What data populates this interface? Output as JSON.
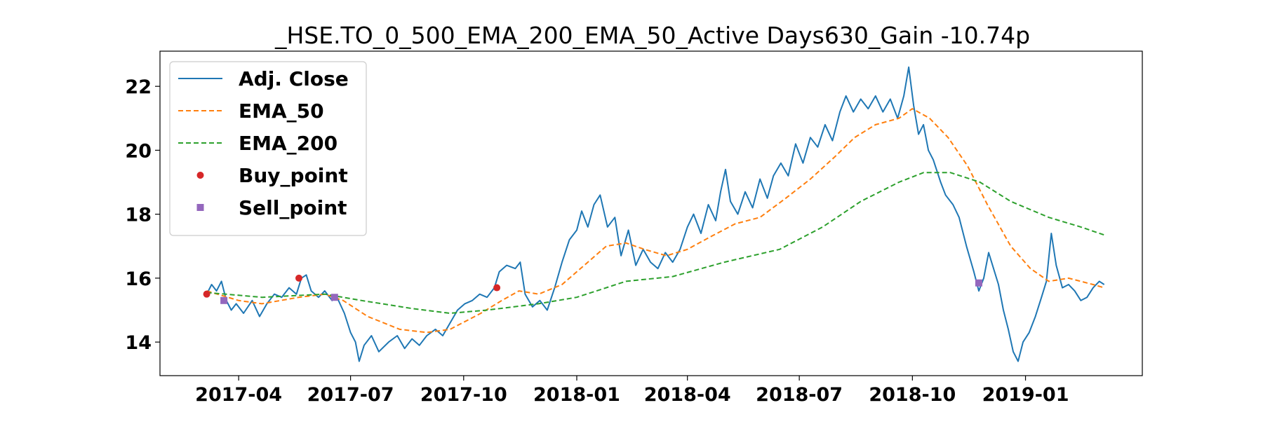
{
  "chart_data": {
    "type": "line",
    "title": "_HSE.TO_0_500_EMA_200_EMA_50_Active Days630_Gain -10.74p",
    "xlabel": "",
    "ylabel": "",
    "x_range": [
      "2017-01-27",
      "2019-04-06"
    ],
    "ylim": [
      12.95,
      23.1
    ],
    "x_ticks": [
      {
        "date": "2017-04-01",
        "label": "2017-04"
      },
      {
        "date": "2017-07-01",
        "label": "2017-07"
      },
      {
        "date": "2017-10-01",
        "label": "2017-10"
      },
      {
        "date": "2018-01-01",
        "label": "2018-01"
      },
      {
        "date": "2018-04-01",
        "label": "2018-04"
      },
      {
        "date": "2018-07-01",
        "label": "2018-07"
      },
      {
        "date": "2018-10-01",
        "label": "2018-10"
      },
      {
        "date": "2019-01-01",
        "label": "2019-01"
      }
    ],
    "y_ticks": [
      14,
      16,
      18,
      20,
      22
    ],
    "grid": false,
    "legend": {
      "placement": "upper-left",
      "entries": [
        {
          "label": "Adj. Close",
          "style": "line-solid",
          "color": "#1f77b4"
        },
        {
          "label": "EMA_50",
          "style": "line-dashed",
          "color": "#ff7f0e"
        },
        {
          "label": "EMA_200",
          "style": "line-dashed",
          "color": "#2ca02c"
        },
        {
          "label": "Buy_point",
          "style": "marker-circle",
          "color": "#d62728"
        },
        {
          "label": "Sell_point",
          "style": "marker-square",
          "color": "#9467bd"
        }
      ]
    },
    "series": [
      {
        "name": "Adj. Close",
        "color": "#1f77b4",
        "style": "solid",
        "points": [
          [
            "2017-03-06",
            15.5
          ],
          [
            "2017-03-10",
            15.8
          ],
          [
            "2017-03-14",
            15.6
          ],
          [
            "2017-03-18",
            15.9
          ],
          [
            "2017-03-22",
            15.3
          ],
          [
            "2017-03-26",
            15.0
          ],
          [
            "2017-03-30",
            15.2
          ],
          [
            "2017-04-05",
            14.9
          ],
          [
            "2017-04-12",
            15.3
          ],
          [
            "2017-04-18",
            14.8
          ],
          [
            "2017-04-24",
            15.2
          ],
          [
            "2017-04-30",
            15.5
          ],
          [
            "2017-05-06",
            15.4
          ],
          [
            "2017-05-12",
            15.7
          ],
          [
            "2017-05-18",
            15.5
          ],
          [
            "2017-05-22",
            16.0
          ],
          [
            "2017-05-26",
            16.1
          ],
          [
            "2017-05-30",
            15.6
          ],
          [
            "2017-06-05",
            15.4
          ],
          [
            "2017-06-10",
            15.6
          ],
          [
            "2017-06-16",
            15.3
          ],
          [
            "2017-06-20",
            15.4
          ],
          [
            "2017-06-26",
            14.9
          ],
          [
            "2017-07-01",
            14.3
          ],
          [
            "2017-07-05",
            14.0
          ],
          [
            "2017-07-08",
            13.4
          ],
          [
            "2017-07-12",
            13.9
          ],
          [
            "2017-07-18",
            14.2
          ],
          [
            "2017-07-24",
            13.7
          ],
          [
            "2017-08-01",
            14.0
          ],
          [
            "2017-08-08",
            14.2
          ],
          [
            "2017-08-14",
            13.8
          ],
          [
            "2017-08-20",
            14.1
          ],
          [
            "2017-08-26",
            13.9
          ],
          [
            "2017-09-01",
            14.2
          ],
          [
            "2017-09-08",
            14.4
          ],
          [
            "2017-09-14",
            14.2
          ],
          [
            "2017-09-20",
            14.6
          ],
          [
            "2017-09-26",
            15.0
          ],
          [
            "2017-10-02",
            15.2
          ],
          [
            "2017-10-08",
            15.3
          ],
          [
            "2017-10-14",
            15.5
          ],
          [
            "2017-10-20",
            15.4
          ],
          [
            "2017-10-26",
            15.7
          ],
          [
            "2017-10-30",
            16.2
          ],
          [
            "2017-11-05",
            16.4
          ],
          [
            "2017-11-12",
            16.3
          ],
          [
            "2017-11-16",
            16.5
          ],
          [
            "2017-11-20",
            15.5
          ],
          [
            "2017-11-26",
            15.1
          ],
          [
            "2017-12-02",
            15.3
          ],
          [
            "2017-12-08",
            15.0
          ],
          [
            "2017-12-14",
            15.7
          ],
          [
            "2017-12-20",
            16.5
          ],
          [
            "2017-12-26",
            17.2
          ],
          [
            "2018-01-01",
            17.5
          ],
          [
            "2018-01-05",
            18.1
          ],
          [
            "2018-01-10",
            17.6
          ],
          [
            "2018-01-15",
            18.3
          ],
          [
            "2018-01-20",
            18.6
          ],
          [
            "2018-01-26",
            17.6
          ],
          [
            "2018-02-01",
            17.9
          ],
          [
            "2018-02-06",
            16.7
          ],
          [
            "2018-02-12",
            17.5
          ],
          [
            "2018-02-18",
            16.4
          ],
          [
            "2018-02-24",
            16.9
          ],
          [
            "2018-03-02",
            16.5
          ],
          [
            "2018-03-08",
            16.3
          ],
          [
            "2018-03-14",
            16.8
          ],
          [
            "2018-03-20",
            16.5
          ],
          [
            "2018-03-26",
            16.9
          ],
          [
            "2018-04-01",
            17.6
          ],
          [
            "2018-04-06",
            18.0
          ],
          [
            "2018-04-12",
            17.4
          ],
          [
            "2018-04-18",
            18.3
          ],
          [
            "2018-04-24",
            17.8
          ],
          [
            "2018-04-28",
            18.7
          ],
          [
            "2018-05-02",
            19.4
          ],
          [
            "2018-05-06",
            18.4
          ],
          [
            "2018-05-12",
            18.0
          ],
          [
            "2018-05-18",
            18.7
          ],
          [
            "2018-05-24",
            18.2
          ],
          [
            "2018-05-30",
            19.1
          ],
          [
            "2018-06-05",
            18.5
          ],
          [
            "2018-06-10",
            19.2
          ],
          [
            "2018-06-16",
            19.6
          ],
          [
            "2018-06-22",
            19.2
          ],
          [
            "2018-06-28",
            20.2
          ],
          [
            "2018-07-04",
            19.6
          ],
          [
            "2018-07-10",
            20.4
          ],
          [
            "2018-07-16",
            20.1
          ],
          [
            "2018-07-22",
            20.8
          ],
          [
            "2018-07-28",
            20.3
          ],
          [
            "2018-08-03",
            21.2
          ],
          [
            "2018-08-08",
            21.7
          ],
          [
            "2018-08-14",
            21.2
          ],
          [
            "2018-08-20",
            21.6
          ],
          [
            "2018-08-26",
            21.3
          ],
          [
            "2018-09-01",
            21.7
          ],
          [
            "2018-09-07",
            21.2
          ],
          [
            "2018-09-13",
            21.6
          ],
          [
            "2018-09-19",
            21.0
          ],
          [
            "2018-09-24",
            21.7
          ],
          [
            "2018-09-28",
            22.6
          ],
          [
            "2018-10-02",
            21.4
          ],
          [
            "2018-10-06",
            20.5
          ],
          [
            "2018-10-10",
            20.8
          ],
          [
            "2018-10-14",
            20.0
          ],
          [
            "2018-10-18",
            19.7
          ],
          [
            "2018-10-24",
            19.0
          ],
          [
            "2018-10-28",
            18.6
          ],
          [
            "2018-11-03",
            18.3
          ],
          [
            "2018-11-08",
            17.9
          ],
          [
            "2018-11-14",
            17.0
          ],
          [
            "2018-11-20",
            16.2
          ],
          [
            "2018-11-24",
            15.6
          ],
          [
            "2018-11-28",
            16.0
          ],
          [
            "2018-12-02",
            16.8
          ],
          [
            "2018-12-06",
            16.3
          ],
          [
            "2018-12-10",
            15.8
          ],
          [
            "2018-12-14",
            15.0
          ],
          [
            "2018-12-18",
            14.4
          ],
          [
            "2018-12-22",
            13.7
          ],
          [
            "2018-12-26",
            13.4
          ],
          [
            "2018-12-30",
            14.0
          ],
          [
            "2019-01-04",
            14.3
          ],
          [
            "2019-01-09",
            14.8
          ],
          [
            "2019-01-14",
            15.4
          ],
          [
            "2019-01-18",
            15.9
          ],
          [
            "2019-01-22",
            17.4
          ],
          [
            "2019-01-26",
            16.4
          ],
          [
            "2019-01-31",
            15.7
          ],
          [
            "2019-02-05",
            15.8
          ],
          [
            "2019-02-10",
            15.6
          ],
          [
            "2019-02-15",
            15.3
          ],
          [
            "2019-02-20",
            15.4
          ],
          [
            "2019-02-25",
            15.7
          ],
          [
            "2019-03-02",
            15.9
          ],
          [
            "2019-03-06",
            15.8
          ]
        ]
      },
      {
        "name": "EMA_50",
        "color": "#ff7f0e",
        "style": "dashed",
        "points": [
          [
            "2017-03-06",
            15.6
          ],
          [
            "2017-04-01",
            15.3
          ],
          [
            "2017-04-20",
            15.2
          ],
          [
            "2017-05-20",
            15.4
          ],
          [
            "2017-06-10",
            15.5
          ],
          [
            "2017-06-25",
            15.3
          ],
          [
            "2017-07-15",
            14.8
          ],
          [
            "2017-08-10",
            14.4
          ],
          [
            "2017-09-01",
            14.3
          ],
          [
            "2017-09-20",
            14.4
          ],
          [
            "2017-10-15",
            14.9
          ],
          [
            "2017-11-01",
            15.3
          ],
          [
            "2017-11-15",
            15.6
          ],
          [
            "2017-12-01",
            15.5
          ],
          [
            "2017-12-20",
            15.8
          ],
          [
            "2018-01-10",
            16.5
          ],
          [
            "2018-01-25",
            17.0
          ],
          [
            "2018-02-10",
            17.1
          ],
          [
            "2018-02-25",
            16.9
          ],
          [
            "2018-03-15",
            16.7
          ],
          [
            "2018-04-01",
            16.9
          ],
          [
            "2018-04-20",
            17.3
          ],
          [
            "2018-05-10",
            17.7
          ],
          [
            "2018-05-30",
            17.9
          ],
          [
            "2018-06-20",
            18.5
          ],
          [
            "2018-07-10",
            19.1
          ],
          [
            "2018-07-30",
            19.8
          ],
          [
            "2018-08-15",
            20.4
          ],
          [
            "2018-09-01",
            20.8
          ],
          [
            "2018-09-20",
            21.0
          ],
          [
            "2018-10-01",
            21.3
          ],
          [
            "2018-10-15",
            21.0
          ],
          [
            "2018-10-30",
            20.4
          ],
          [
            "2018-11-15",
            19.5
          ],
          [
            "2018-12-01",
            18.3
          ],
          [
            "2018-12-20",
            17.0
          ],
          [
            "2019-01-05",
            16.3
          ],
          [
            "2019-01-20",
            15.9
          ],
          [
            "2019-02-05",
            16.0
          ],
          [
            "2019-02-25",
            15.8
          ],
          [
            "2019-03-06",
            15.7
          ]
        ]
      },
      {
        "name": "EMA_200",
        "color": "#2ca02c",
        "style": "dashed",
        "points": [
          [
            "2017-03-06",
            15.55
          ],
          [
            "2017-04-20",
            15.4
          ],
          [
            "2017-06-10",
            15.5
          ],
          [
            "2017-07-10",
            15.3
          ],
          [
            "2017-08-20",
            15.05
          ],
          [
            "2017-09-20",
            14.9
          ],
          [
            "2017-10-20",
            15.0
          ],
          [
            "2017-12-01",
            15.2
          ],
          [
            "2018-01-01",
            15.4
          ],
          [
            "2018-02-10",
            15.9
          ],
          [
            "2018-03-20",
            16.05
          ],
          [
            "2018-05-01",
            16.5
          ],
          [
            "2018-06-15",
            16.9
          ],
          [
            "2018-07-20",
            17.6
          ],
          [
            "2018-08-20",
            18.4
          ],
          [
            "2018-09-20",
            19.0
          ],
          [
            "2018-10-10",
            19.3
          ],
          [
            "2018-11-01",
            19.3
          ],
          [
            "2018-11-25",
            19.0
          ],
          [
            "2018-12-20",
            18.4
          ],
          [
            "2019-01-20",
            17.9
          ],
          [
            "2019-02-15",
            17.6
          ],
          [
            "2019-03-06",
            17.35
          ]
        ]
      }
    ],
    "markers": [
      {
        "series": "Buy_point",
        "shape": "circle",
        "color": "#d62728",
        "points": [
          [
            "2017-03-06",
            15.5
          ],
          [
            "2017-05-20",
            16.0
          ],
          [
            "2017-10-28",
            15.7
          ]
        ]
      },
      {
        "series": "Sell_point",
        "shape": "square",
        "color": "#9467bd",
        "points": [
          [
            "2017-03-20",
            15.3
          ],
          [
            "2017-06-18",
            15.4
          ],
          [
            "2018-11-24",
            15.85
          ]
        ]
      }
    ]
  }
}
